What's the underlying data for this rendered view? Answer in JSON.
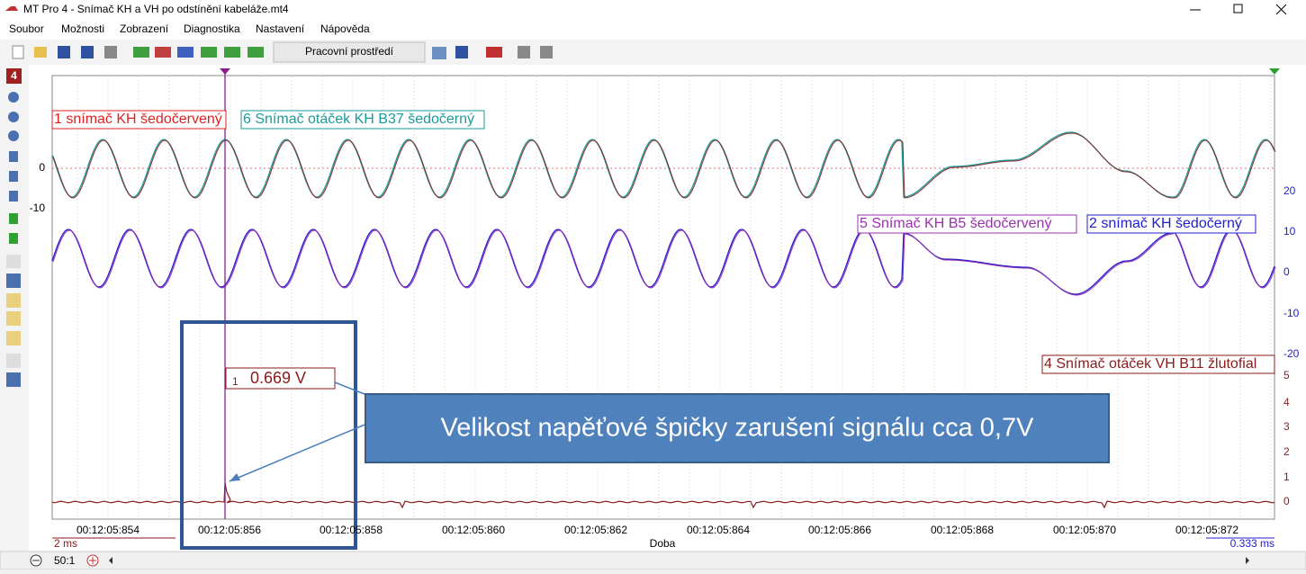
{
  "window": {
    "title": "MT Pro 4 - Snímač KH a VH po odstínění kabeláže.mt4"
  },
  "menu": [
    "Soubor",
    "Možnosti",
    "Zobrazení",
    "Diagnostika",
    "Nastavení",
    "Nápověda"
  ],
  "toolbar": {
    "workspace": "Pracovní prostředí"
  },
  "left_toolbar": {
    "badge": "4"
  },
  "plot": {
    "channels": [
      "1 snímač KH šedočervený",
      "6 Snímač otáček KH B37 šedočerný",
      "5 Snímač KH B5 šedočervený",
      "2 snímač KH šedočerný",
      "4 Snímač otáček VH B11 žlutofial"
    ],
    "left_axis": [
      "0",
      "-10"
    ],
    "right_axis_blue": [
      "20",
      "10",
      "0",
      "-10",
      "-20"
    ],
    "right_axis_red": [
      "5",
      "4",
      "3",
      "2",
      "1",
      "0"
    ],
    "cursor_index": "1",
    "cursor_readout": "0.669 V",
    "annotation": "Velikost napěťové špičky zarušení signálu cca 0,7V",
    "time_labels": [
      "00:12:05:854",
      "00:12:05:856",
      "00:12:05:858",
      "00:12:05:860",
      "00:12:05:862",
      "00:12:05:864",
      "00:12:05:866",
      "00:12:05:868",
      "00:12:05:870",
      "00:12:05:872"
    ],
    "scale_left": "2 ms",
    "axis_label": "Doba",
    "scale_right": "0.333 ms"
  },
  "status": {
    "zoom": "50:1"
  }
}
